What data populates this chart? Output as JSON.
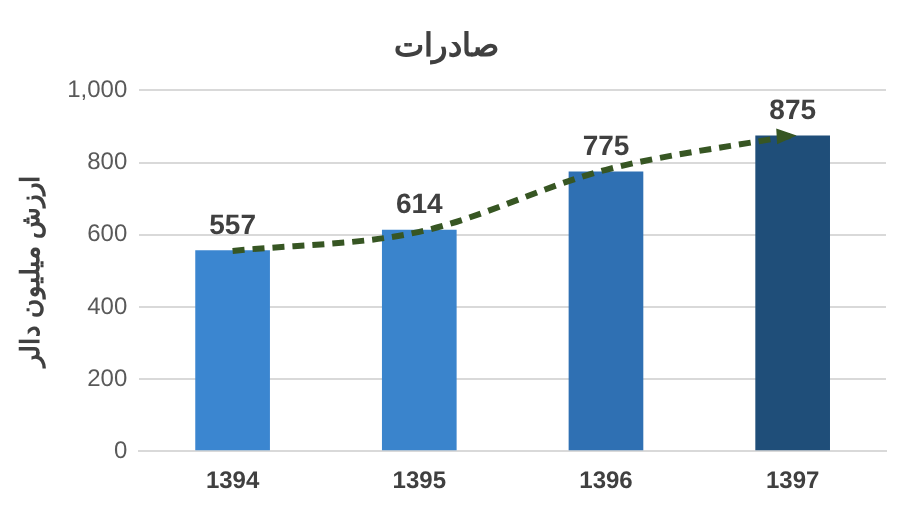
{
  "chart_data": {
    "type": "bar",
    "title": "صادرات",
    "ylabel": "ارزش میلیون دالر",
    "categories": [
      "1394",
      "1395",
      "1396",
      "1397"
    ],
    "series": [
      {
        "colors": [
          "#3b86d0",
          "#3a84cc",
          "#2f70b3",
          "#1f4e79"
        ],
        "values": [
          557,
          614,
          775,
          875
        ],
        "value_labels": [
          "557",
          "614",
          "775",
          "875"
        ]
      },
      {
        "type": "line",
        "color": "#375623",
        "line_style": "dashed",
        "marker": "none",
        "values": [
          555,
          608,
          780,
          875
        ]
      }
    ],
    "ylim": [
      0,
      1000
    ],
    "yticks": [
      0,
      200,
      400,
      600,
      800,
      {
        "value": 1000,
        "label": "1,000"
      }
    ],
    "grid": "y",
    "legend": false
  }
}
